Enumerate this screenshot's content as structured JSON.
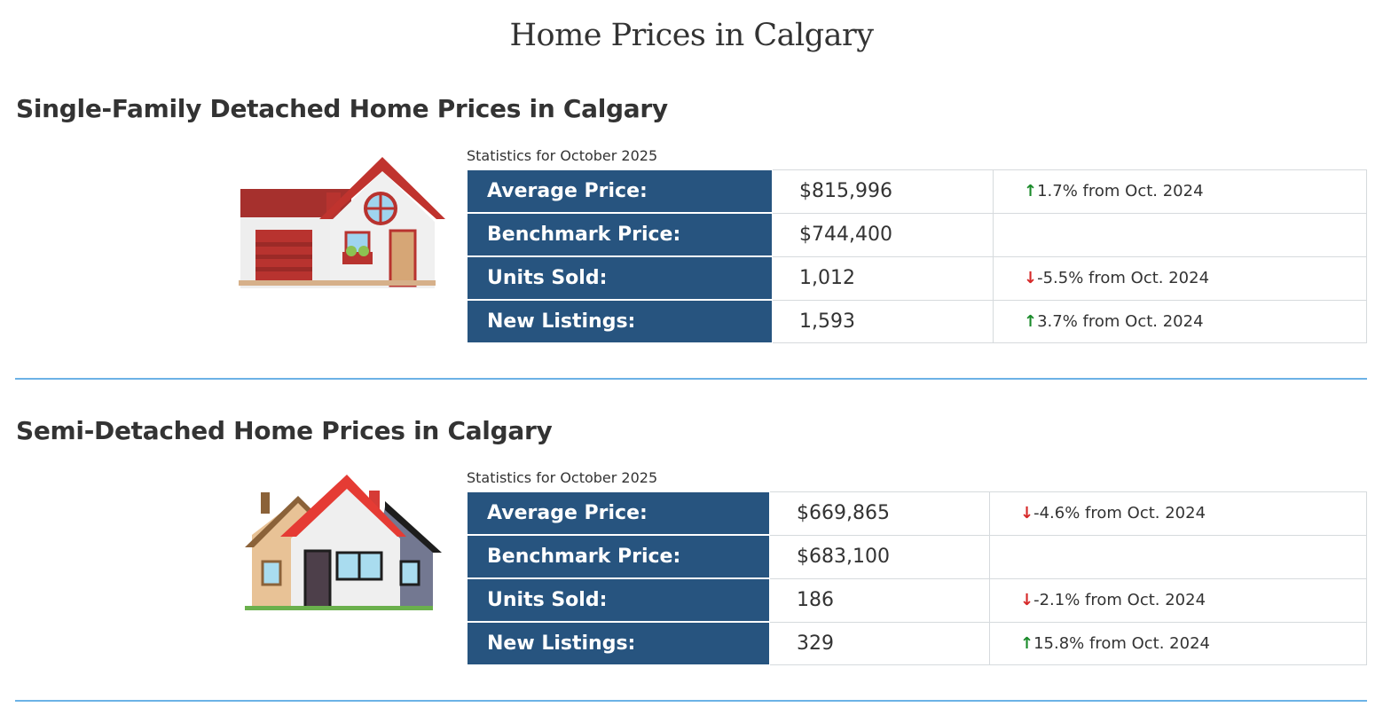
{
  "page_title": "Home Prices in Calgary",
  "sections": [
    {
      "heading": "Single-Family Detached Home Prices in Calgary",
      "caption": "Statistics for October 2025",
      "rows": [
        {
          "label": "Average Price:",
          "value": "$815,996",
          "dir": "up",
          "change": "1.7% from Oct. 2024"
        },
        {
          "label": "Benchmark Price:",
          "value": "$744,400",
          "dir": "",
          "change": ""
        },
        {
          "label": "Units Sold:",
          "value": "1,012",
          "dir": "down",
          "change": "-5.5% from Oct. 2024"
        },
        {
          "label": "New Listings:",
          "value": "1,593",
          "dir": "up",
          "change": "3.7% from Oct. 2024"
        }
      ]
    },
    {
      "heading": "Semi-Detached Home Prices in Calgary",
      "caption": "Statistics for October 2025",
      "rows": [
        {
          "label": "Average Price:",
          "value": "$669,865",
          "dir": "down",
          "change": "-4.6% from Oct. 2024"
        },
        {
          "label": "Benchmark Price:",
          "value": "$683,100",
          "dir": "",
          "change": ""
        },
        {
          "label": "Units Sold:",
          "value": "186",
          "dir": "down",
          "change": "-2.1% from Oct. 2024"
        },
        {
          "label": "New Listings:",
          "value": "329",
          "dir": "up",
          "change": "15.8% from Oct. 2024"
        }
      ]
    }
  ],
  "icons": {
    "up": "↑",
    "down": "↓"
  },
  "colors": {
    "label_bg": "#27547f",
    "up": "#1a8a2a",
    "down": "#d62828",
    "rule": "#6cb2e6"
  }
}
